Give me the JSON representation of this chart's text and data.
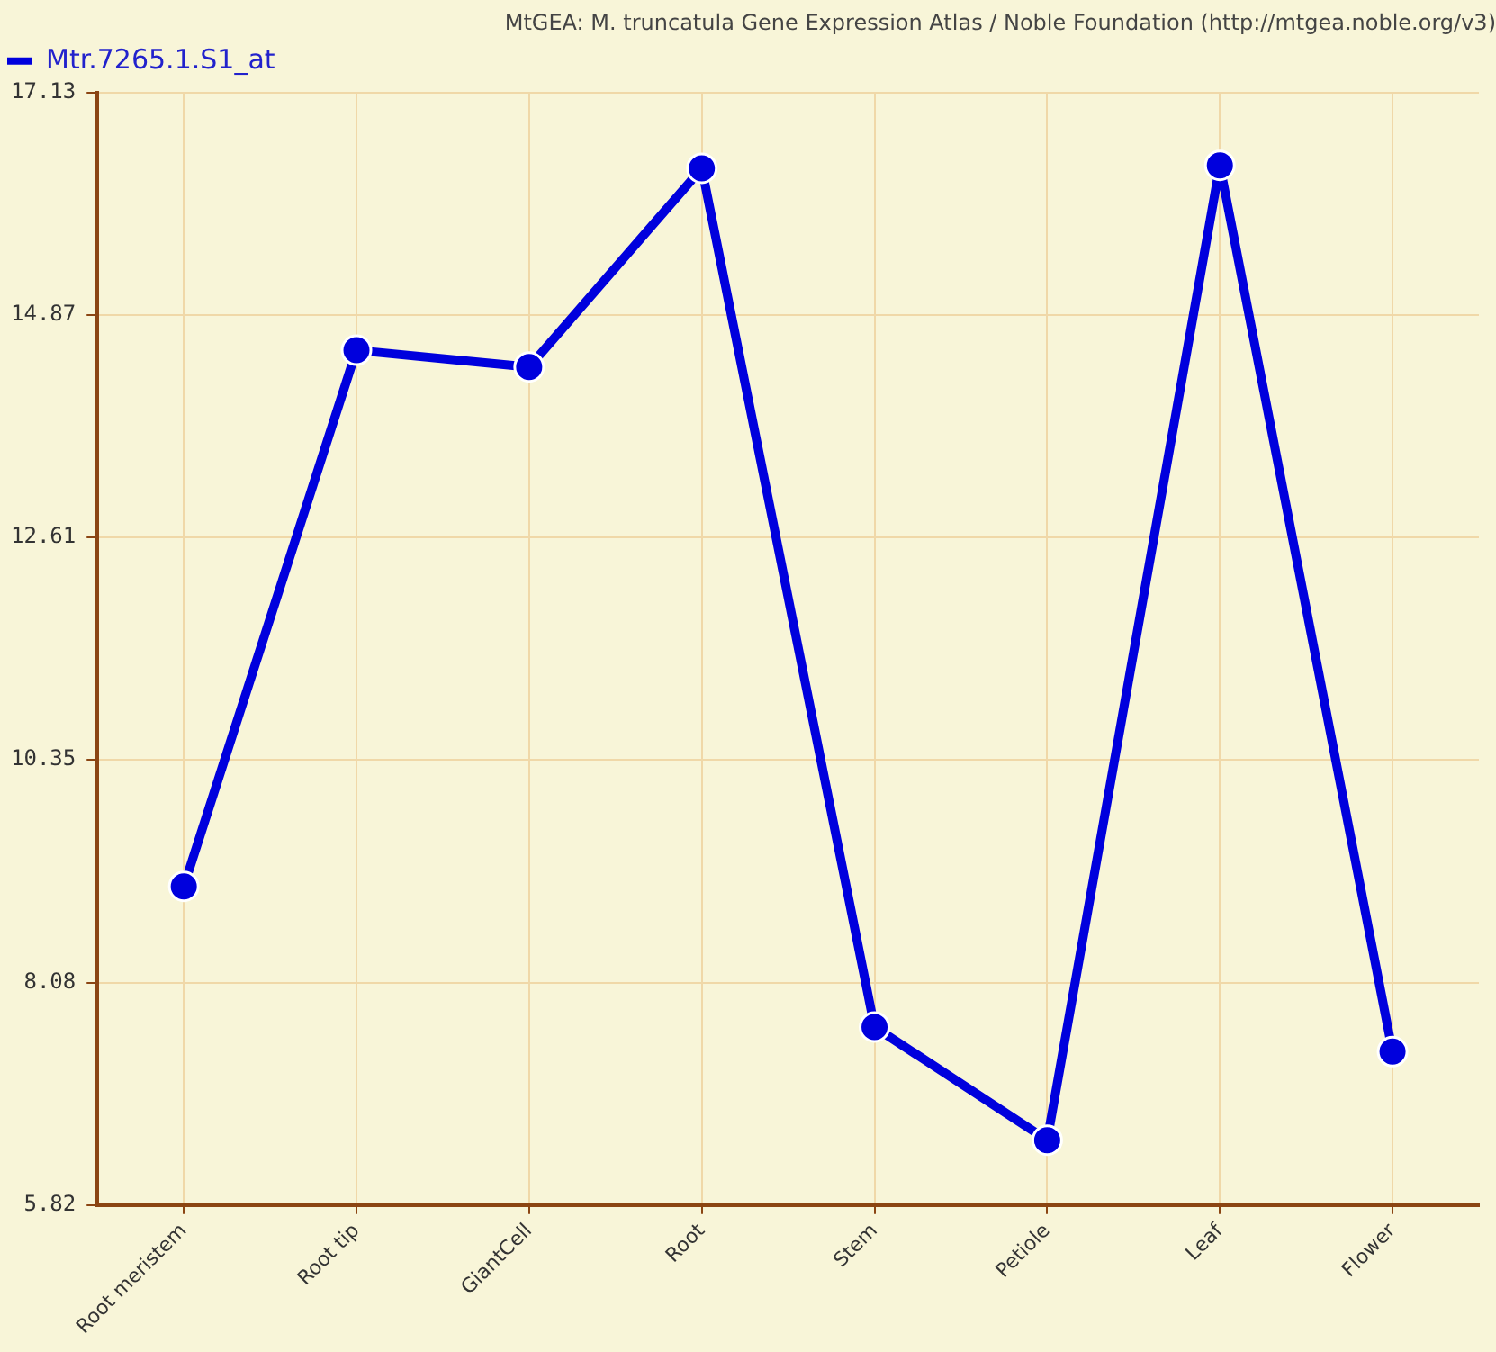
{
  "chart_data": {
    "type": "line",
    "title": "MtGEA: M. truncatula Gene Expression Atlas / Noble Foundation (http://mtgea.noble.org/v3)",
    "categories": [
      "Root meristem",
      "Root tip",
      "GiantCell",
      "Root",
      "Stem",
      "Petiole",
      "Leaf",
      "Flower"
    ],
    "series": [
      {
        "name": "Mtr.7265.1.S1_at",
        "color": "#0000dd",
        "values": [
          9.06,
          14.51,
          14.34,
          16.36,
          7.63,
          6.48,
          16.39,
          7.38
        ]
      }
    ],
    "ylim": [
      5.82,
      17.13
    ],
    "yticks": [
      5.82,
      8.08,
      10.35,
      12.61,
      14.87,
      17.13
    ],
    "grid": true,
    "legend": "top left",
    "marker": "circle",
    "line_style": "solid"
  }
}
